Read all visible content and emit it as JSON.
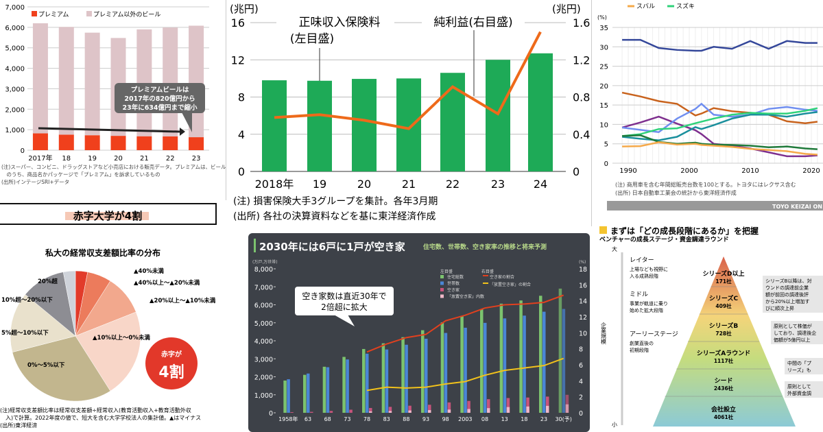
{
  "chart_data": [
    {
      "type": "bar",
      "stacked": true,
      "panel": "beer",
      "legend": [
        "プレミアム",
        "プレミアム以外のビール"
      ],
      "categories": [
        "2017年",
        "18",
        "19",
        "20",
        "21",
        "22",
        "23"
      ],
      "series": [
        {
          "name": "プレミアム",
          "values": [
            820,
            760,
            730,
            700,
            680,
            670,
            634
          ],
          "color": "#f0401c"
        },
        {
          "name": "プレミアム以外のビール",
          "values": [
            5380,
            5260,
            5010,
            4780,
            5220,
            5320,
            5446
          ],
          "color": "#dec4c8"
        }
      ],
      "ylim": [
        0,
        7000
      ],
      "yticks": [
        "0",
        "1,000",
        "2,000",
        "3,000",
        "4,000",
        "5,000",
        "6,000",
        "7,000"
      ],
      "callout": [
        "プレミアムビールは",
        "2017年の820億円から",
        "23年に634億円まで縮小"
      ],
      "notes": [
        "(注)スーパー、コンビニ、ドラッグストアなど小売店における販売データ。プレミアムは、ビール",
        "　のうち、商品名かパッケージで「プレミアム」を訴求しているもの",
        "(出所)インテージSRI+データ"
      ]
    },
    {
      "type": "bar+line",
      "panel": "insurance",
      "categories": [
        "2018年",
        "19",
        "20",
        "21",
        "22",
        "23",
        "24"
      ],
      "series": [
        {
          "name": "正味収入保険料(左目盛)",
          "type": "bar",
          "values": [
            9.8,
            9.75,
            9.95,
            10.0,
            10.6,
            12.0,
            12.7
          ],
          "color": "#1eaa57"
        },
        {
          "name": "純利益(右目盛)",
          "type": "line",
          "values": [
            0.58,
            0.61,
            0.55,
            0.46,
            0.91,
            0.62,
            1.5
          ],
          "color": "#ee6a1a"
        }
      ],
      "ylabel_left": "(兆円)",
      "ylabel_right": "(兆円)",
      "ylim_left": [
        0,
        16
      ],
      "ylim_right": [
        0,
        1.6
      ],
      "yticks_left": [
        "0",
        "4",
        "8",
        "12",
        "16"
      ],
      "yticks_right": [
        "0",
        "0.4",
        "0.8",
        "1.2",
        "1.6"
      ],
      "annotations": [
        "正味収入保険料",
        "(左目盛)",
        "純利益(右目盛)"
      ],
      "notes": [
        "(注) 損害保険大手3グループを集計。各年3月期",
        "(出所) 各社の決算資料などを基に東洋経済作成"
      ]
    },
    {
      "type": "line",
      "panel": "cars",
      "legend": [
        "スバル",
        "スズキ"
      ],
      "ylabel": "(%)",
      "ylim": [
        0,
        35
      ],
      "yticks": [
        "0",
        "5",
        "10",
        "15",
        "20",
        "25",
        "30",
        "35"
      ],
      "xticks": [
        "1990",
        "2000",
        "2010",
        "2020"
      ],
      "x": [
        1989,
        1992,
        1995,
        1998,
        2001,
        2002,
        2004,
        2007,
        2010,
        2013,
        2016,
        2019,
        2021
      ],
      "series": [
        {
          "color": "#34479a",
          "values": [
            31.8,
            31.8,
            29.7,
            29.2,
            29,
            29,
            30,
            29.5,
            31.5,
            29.5,
            31.5,
            31,
            31
          ]
        },
        {
          "color": "#c8621c",
          "values": [
            18.2,
            17.2,
            16,
            15.3,
            12.3,
            12.8,
            14.2,
            13.4,
            13,
            12.5,
            10.8,
            10.3,
            10.7
          ]
        },
        {
          "color": "#7e2f8e",
          "values": [
            9.2,
            10.5,
            12,
            10.2,
            8.5,
            7.5,
            5,
            4.5,
            3.8,
            2.8,
            1.8,
            1.8,
            2
          ]
        },
        {
          "color": "#6f8ef0",
          "values": [
            9.2,
            8.6,
            8,
            11.5,
            14,
            15.3,
            12.5,
            12,
            12.5,
            14,
            14.5,
            13.8,
            13.5
          ]
        },
        {
          "color": "#1a8f9c",
          "values": [
            6.8,
            6.3,
            5.9,
            6.8,
            9.3,
            8.8,
            9.8,
            11.5,
            12.5,
            12.5,
            12,
            12.8,
            13.2
          ]
        },
        {
          "name": "スズキ",
          "color": "#2fd27a",
          "values": [
            7,
            7.5,
            8.8,
            9,
            10.3,
            10.7,
            11.5,
            12.5,
            13,
            12.8,
            12.8,
            13.5,
            14.2
          ]
        },
        {
          "color": "#1f7a3a",
          "values": [
            7,
            7.2,
            5.5,
            5,
            5.3,
            5,
            4.8,
            4.7,
            4.5,
            4.1,
            4.3,
            3.8,
            3.6
          ]
        },
        {
          "name": "スバル",
          "color": "#f5a94a",
          "values": [
            4.3,
            4.4,
            5.4,
            4.8,
            5,
            4.7,
            4.5,
            4.2,
            3.7,
            3.4,
            3.1,
            2.4,
            2.2
          ]
        }
      ],
      "notes": [
        "(注) 商用車を含む年間総販売台数を100とする。トヨタにはレクサス含む",
        "(出所) 日本自動車工業会の統計から東洋経済作成"
      ],
      "footer": "TOYO KEIZAI ON"
    },
    {
      "type": "pie",
      "panel": "university",
      "header": "赤字大学が4割",
      "title": "私大の経常収支差額比率の分布",
      "slices": [
        {
          "label": "▲40%未満",
          "value": 3,
          "color": "#e23b2a"
        },
        {
          "label": "▲40%以上〜▲20%未満",
          "value": 6,
          "color": "#ec7b5c"
        },
        {
          "label": "▲20%以上〜▲10%未満",
          "value": 10,
          "color": "#f2a88d"
        },
        {
          "label": "▲10%以上〜0%未満",
          "value": 22,
          "color": "#f8d6c8"
        },
        {
          "label": "0%〜5%以下",
          "value": 30,
          "color": "#c2b68e"
        },
        {
          "label": "5%超〜10%以下",
          "value": 15,
          "color": "#e9e1cc"
        },
        {
          "label": "10%超〜20%以下",
          "value": 11,
          "color": "#8d8d93"
        },
        {
          "label": "20%超",
          "value": 3,
          "color": "#cfd3da"
        }
      ],
      "badge": [
        "赤字が",
        "4割"
      ],
      "notes": [
        "(注)経常収支差額比率は経常収支差額÷経常収入(教育活動収入+教育活動外収",
        "　入)で計算。2022年度の値で、短大を含む大学学校法人の集計値。▲はマイナス",
        "(出所)東洋経済"
      ]
    },
    {
      "type": "bar+line",
      "panel": "housing",
      "title": "2030年には6戸に1戸が空き家",
      "subtitle": "住宅数、世帯数、空き家率の推移と将来予測",
      "ylabel_left": "(万戸,万世帯)",
      "ylabel_right": "(%)",
      "categories": [
        "1958年",
        "63",
        "68",
        "73",
        "78",
        "83",
        "88",
        "93",
        "98",
        "2003",
        "08",
        "13",
        "18",
        "23",
        "30(予)"
      ],
      "ylim_left": [
        0,
        8000
      ],
      "ylim_right": [
        0,
        18
      ],
      "yticks_left": [
        "0",
        "1,000",
        "2,000",
        "3,000",
        "4,000",
        "5,000",
        "6,000",
        "7,000",
        "8,000"
      ],
      "yticks_right": [
        "0",
        "2",
        "4",
        "6",
        "8",
        "10",
        "12",
        "14",
        "16",
        "18"
      ],
      "legend_left_title": "左目盛",
      "legend_right_title": "右目盛",
      "series": [
        {
          "name": "住宅総数",
          "type": "bar",
          "color": "#7cc36e",
          "values": [
            1793,
            2109,
            2559,
            3106,
            3545,
            3861,
            4201,
            4588,
            5025,
            5389,
            5759,
            6063,
            6241,
            6502,
            6900
          ]
        },
        {
          "name": "世帯数",
          "type": "bar",
          "color": "#4a86d6",
          "values": [
            1865,
            2182,
            2532,
            2965,
            3284,
            3520,
            3781,
            4116,
            4436,
            4726,
            4997,
            5245,
            5400,
            5616,
            5770
          ]
        },
        {
          "name": "空き家",
          "type": "bar",
          "color": "#c8547c",
          "values": [
            36,
            52,
            103,
            172,
            268,
            330,
            394,
            448,
            576,
            659,
            757,
            820,
            849,
            900,
            1000
          ]
        },
        {
          "name": "「放置空き家」内数",
          "type": "bar",
          "color": "#f0b8c8",
          "values": [
            null,
            null,
            null,
            null,
            80,
            100,
            130,
            150,
            180,
            210,
            260,
            320,
            350,
            385,
            470
          ]
        },
        {
          "name": "空き家の割合",
          "type": "line",
          "color": "#e2401e",
          "values": [
            null,
            null,
            null,
            null,
            7.6,
            8.6,
            9.4,
            9.8,
            11.5,
            12.2,
            13.1,
            13.5,
            13.6,
            13.8,
            14.7
          ]
        },
        {
          "name": "「放置空き家」の割合",
          "type": "line",
          "color": "#f2c21b",
          "values": [
            null,
            null,
            null,
            null,
            2.8,
            3.2,
            3.1,
            3.2,
            3.6,
            3.9,
            4.7,
            5.3,
            5.6,
            5.9,
            6.8
          ]
        }
      ],
      "callout": [
        "空き家数は直近30年で",
        "2倍超に拡大"
      ]
    },
    {
      "type": "diagram",
      "panel": "venture",
      "title": "まずは「どの成長段階にあるか」を把握",
      "subtitle": "ベンチャーの成長ステージ・資金調達ラウンド",
      "axis": {
        "top": "大",
        "bottom": "小",
        "label": "企業規模"
      },
      "stages": [
        {
          "name": "シリーズD以上",
          "count": "171社"
        },
        {
          "name": "シリーズC",
          "count": "409社"
        },
        {
          "name": "シリーズB",
          "count": "728社"
        },
        {
          "name": "シリーズAラウンド",
          "count": "1117社"
        },
        {
          "name": "シード",
          "count": "2436社"
        },
        {
          "name": "会社設立",
          "count": "4061社"
        }
      ],
      "phases": [
        {
          "name": "レイター",
          "desc": [
            "上場なども視野に",
            "入る成熟段階"
          ]
        },
        {
          "name": "ミドル",
          "desc": [
            "事業が軌道に乗り",
            "始めた拡大段階"
          ]
        },
        {
          "name": "アーリーステージ",
          "desc": [
            "創業直後の",
            "初期段階"
          ]
        }
      ],
      "side_notes": [
        [
          "シリーズB以降は、対",
          "ウンドの調達前企業",
          "額が前回の調達後評",
          "から20%以上増加す",
          "びに順次上昇"
        ],
        [
          "原則として株価が",
          "しており、調達後企",
          "価額が5億円以上"
        ],
        [
          "中間の「プ",
          "リーズ」も"
        ],
        [
          "原則として",
          "外部資金調"
        ]
      ]
    }
  ]
}
